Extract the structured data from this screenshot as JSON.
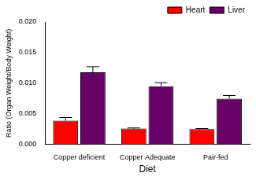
{
  "chart_data": {
    "type": "bar",
    "x_label": "Diet",
    "y_label": "Ratio (Organ Weight/Body Weight)",
    "categories": [
      "Copper deficient",
      "Copper Adequate",
      "Pair-fed"
    ],
    "series": [
      {
        "name": "Heart",
        "color": "#ff0000",
        "values": [
          0.0039,
          0.0026,
          0.0025
        ],
        "errors": [
          0.0005,
          0.0001,
          0.0001
        ]
      },
      {
        "name": "Liver",
        "color": "#660066",
        "values": [
          0.0118,
          0.0095,
          0.0075
        ],
        "errors": [
          0.0009,
          0.0006,
          0.0005
        ]
      }
    ],
    "ylim": [
      0,
      0.02
    ],
    "yticks": [
      {
        "value": 0,
        "label": "0.000"
      },
      0.005,
      {
        "value": 0.01,
        "label": "0.010"
      },
      0.015,
      {
        "value": 0.02,
        "label": "0.020"
      }
    ],
    "grid": false,
    "legend": "top-right"
  }
}
